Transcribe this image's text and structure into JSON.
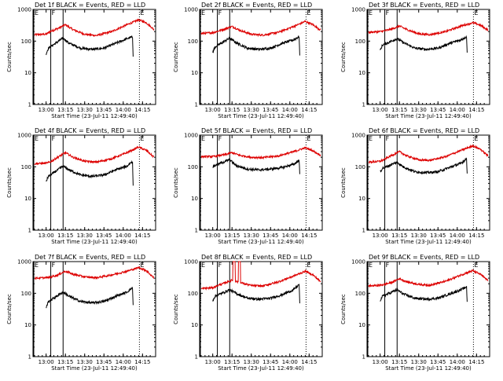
{
  "chart_data": {
    "type": "line",
    "layout": "3x3 grid",
    "xlabel": "Start Time (23-Jul-11 12:49:40)",
    "ylabel": "Counts/sec",
    "yscale": "log",
    "ylim": [
      1,
      1000
    ],
    "y_ticks": [
      "1",
      "10",
      "100",
      "1000"
    ],
    "x_range_minutes": [
      12.83,
      14.42
    ],
    "x_ticks": [
      "13:00",
      "13:15",
      "13:30",
      "13:45",
      "14:00",
      "14:15"
    ],
    "colors": {
      "events": "#000000",
      "lld": "#dd0000",
      "axes": "#000000"
    },
    "legend": "in panel titles",
    "panels": [
      {
        "title": "Det 1f BLACK = Events, RED = LLD",
        "markers": {
          "E_left": 12.84,
          "F": 13.22,
          "E_right": 14.21
        },
        "events_knots": [
          [
            13.0,
            40
          ],
          [
            13.03,
            60
          ],
          [
            13.22,
            125
          ],
          [
            13.3,
            85
          ],
          [
            13.45,
            60
          ],
          [
            13.6,
            55
          ],
          [
            13.75,
            60
          ],
          [
            13.9,
            85
          ],
          [
            14.05,
            120
          ],
          [
            14.12,
            135
          ],
          [
            14.13,
            25
          ]
        ],
        "lld_knots": [
          [
            12.85,
            160
          ],
          [
            13.0,
            165
          ],
          [
            13.05,
            200
          ],
          [
            13.15,
            250
          ],
          [
            13.25,
            330
          ],
          [
            13.35,
            230
          ],
          [
            13.5,
            165
          ],
          [
            13.65,
            150
          ],
          [
            13.85,
            200
          ],
          [
            14.05,
            330
          ],
          [
            14.2,
            470
          ],
          [
            14.3,
            380
          ],
          [
            14.4,
            230
          ]
        ]
      },
      {
        "title": "Det 2f BLACK = Events, RED = LLD",
        "markers": {
          "E_left": 12.84,
          "F": 13.22,
          "E_right": 14.21
        },
        "events_knots": [
          [
            13.0,
            45
          ],
          [
            13.03,
            65
          ],
          [
            13.22,
            125
          ],
          [
            13.3,
            90
          ],
          [
            13.45,
            60
          ],
          [
            13.6,
            55
          ],
          [
            13.75,
            60
          ],
          [
            13.9,
            85
          ],
          [
            14.05,
            110
          ],
          [
            14.12,
            140
          ],
          [
            14.13,
            25
          ]
        ],
        "lld_knots": [
          [
            12.85,
            175
          ],
          [
            13.0,
            185
          ],
          [
            13.05,
            200
          ],
          [
            13.15,
            240
          ],
          [
            13.25,
            290
          ],
          [
            13.35,
            220
          ],
          [
            13.5,
            165
          ],
          [
            13.65,
            155
          ],
          [
            13.85,
            190
          ],
          [
            14.05,
            290
          ],
          [
            14.2,
            420
          ],
          [
            14.3,
            330
          ],
          [
            14.4,
            220
          ]
        ]
      },
      {
        "title": "Det 3f BLACK = Events, RED = LLD",
        "markers": {
          "E_left": 12.84,
          "F": 13.22,
          "E_right": 14.21
        },
        "events_knots": [
          [
            13.0,
            50
          ],
          [
            13.03,
            75
          ],
          [
            13.22,
            120
          ],
          [
            13.3,
            90
          ],
          [
            13.45,
            60
          ],
          [
            13.6,
            55
          ],
          [
            13.75,
            60
          ],
          [
            13.9,
            85
          ],
          [
            14.05,
            110
          ],
          [
            14.12,
            140
          ],
          [
            14.13,
            30
          ]
        ],
        "lld_knots": [
          [
            12.85,
            190
          ],
          [
            13.0,
            200
          ],
          [
            13.05,
            210
          ],
          [
            13.15,
            240
          ],
          [
            13.25,
            300
          ],
          [
            13.35,
            230
          ],
          [
            13.5,
            170
          ],
          [
            13.65,
            160
          ],
          [
            13.85,
            200
          ],
          [
            14.05,
            300
          ],
          [
            14.2,
            380
          ],
          [
            14.3,
            320
          ],
          [
            14.4,
            220
          ]
        ]
      },
      {
        "title": "Det 4f BLACK = Events, RED = LLD",
        "markers": {
          "E_left": 12.84,
          "F": 13.22,
          "E_right": 14.21
        },
        "events_knots": [
          [
            13.0,
            35
          ],
          [
            13.03,
            50
          ],
          [
            13.22,
            105
          ],
          [
            13.3,
            80
          ],
          [
            13.45,
            55
          ],
          [
            13.6,
            50
          ],
          [
            13.75,
            55
          ],
          [
            13.9,
            80
          ],
          [
            14.05,
            105
          ],
          [
            14.12,
            150
          ],
          [
            14.13,
            15
          ]
        ],
        "lld_knots": [
          [
            12.85,
            125
          ],
          [
            13.0,
            130
          ],
          [
            13.05,
            140
          ],
          [
            13.15,
            200
          ],
          [
            13.25,
            280
          ],
          [
            13.35,
            200
          ],
          [
            13.5,
            150
          ],
          [
            13.65,
            140
          ],
          [
            13.85,
            180
          ],
          [
            14.05,
            280
          ],
          [
            14.2,
            420
          ],
          [
            14.3,
            330
          ],
          [
            14.4,
            200
          ]
        ]
      },
      {
        "title": "Det 5f BLACK = Events, RED = LLD",
        "markers": {
          "E_left": 12.84,
          "F": 13.22,
          "E_right": 14.21
        },
        "events_knots": [
          [
            13.0,
            100
          ],
          [
            13.03,
            110
          ],
          [
            13.22,
            170
          ],
          [
            13.3,
            110
          ],
          [
            13.45,
            85
          ],
          [
            13.6,
            80
          ],
          [
            13.75,
            85
          ],
          [
            13.9,
            95
          ],
          [
            14.05,
            120
          ],
          [
            14.12,
            160
          ],
          [
            14.13,
            50
          ]
        ],
        "lld_knots": [
          [
            12.85,
            210
          ],
          [
            13.0,
            210
          ],
          [
            13.05,
            220
          ],
          [
            13.15,
            240
          ],
          [
            13.25,
            280
          ],
          [
            13.35,
            230
          ],
          [
            13.5,
            200
          ],
          [
            13.65,
            195
          ],
          [
            13.85,
            220
          ],
          [
            14.05,
            300
          ],
          [
            14.2,
            400
          ],
          [
            14.3,
            320
          ],
          [
            14.4,
            230
          ]
        ]
      },
      {
        "title": "Det 6f BLACK = Events, RED = LLD",
        "markers": {
          "E_left": 12.84,
          "F": 13.22,
          "E_right": 14.21
        },
        "events_knots": [
          [
            13.0,
            70
          ],
          [
            13.03,
            90
          ],
          [
            13.22,
            140
          ],
          [
            13.3,
            100
          ],
          [
            13.45,
            70
          ],
          [
            13.6,
            65
          ],
          [
            13.75,
            70
          ],
          [
            13.9,
            95
          ],
          [
            14.05,
            130
          ],
          [
            14.12,
            180
          ],
          [
            14.13,
            45
          ]
        ],
        "lld_knots": [
          [
            12.85,
            140
          ],
          [
            13.0,
            150
          ],
          [
            13.05,
            170
          ],
          [
            13.15,
            230
          ],
          [
            13.25,
            300
          ],
          [
            13.35,
            220
          ],
          [
            13.5,
            165
          ],
          [
            13.65,
            160
          ],
          [
            13.85,
            210
          ],
          [
            14.05,
            330
          ],
          [
            14.2,
            460
          ],
          [
            14.3,
            360
          ],
          [
            14.4,
            220
          ]
        ]
      },
      {
        "title": "Det 7f BLACK = Events, RED = LLD",
        "markers": {
          "E_left": 12.84,
          "F": 13.22,
          "E_right": 14.21
        },
        "events_knots": [
          [
            13.0,
            35
          ],
          [
            13.03,
            55
          ],
          [
            13.22,
            110
          ],
          [
            13.3,
            80
          ],
          [
            13.45,
            55
          ],
          [
            13.6,
            50
          ],
          [
            13.75,
            55
          ],
          [
            13.9,
            80
          ],
          [
            14.05,
            110
          ],
          [
            14.12,
            150
          ],
          [
            14.13,
            30
          ]
        ],
        "lld_knots": [
          [
            12.85,
            300
          ],
          [
            13.0,
            310
          ],
          [
            13.05,
            320
          ],
          [
            13.15,
            380
          ],
          [
            13.25,
            500
          ],
          [
            13.35,
            400
          ],
          [
            13.5,
            330
          ],
          [
            13.65,
            310
          ],
          [
            13.85,
            380
          ],
          [
            14.05,
            500
          ],
          [
            14.2,
            650
          ],
          [
            14.3,
            520
          ],
          [
            14.4,
            300
          ]
        ]
      },
      {
        "title": "Det 8f BLACK = Events, RED = LLD",
        "markers": {
          "E_left": 12.84,
          "F": 13.22,
          "E_right": 14.21
        },
        "events_knots": [
          [
            13.0,
            60
          ],
          [
            13.03,
            80
          ],
          [
            13.22,
            130
          ],
          [
            13.3,
            100
          ],
          [
            13.45,
            70
          ],
          [
            13.6,
            65
          ],
          [
            13.75,
            70
          ],
          [
            13.9,
            90
          ],
          [
            14.05,
            130
          ],
          [
            14.12,
            190
          ],
          [
            14.13,
            35
          ]
        ],
        "lld_knots": [
          [
            12.85,
            140
          ],
          [
            13.0,
            150
          ],
          [
            13.05,
            170
          ],
          [
            13.15,
            210
          ],
          [
            13.25,
            260
          ],
          [
            13.35,
            220
          ],
          [
            13.5,
            175
          ],
          [
            13.65,
            170
          ],
          [
            13.85,
            230
          ],
          [
            14.05,
            350
          ],
          [
            14.2,
            500
          ],
          [
            14.3,
            380
          ],
          [
            14.4,
            230
          ]
        ],
        "lld_spikes": [
          [
            13.26,
            13.29
          ],
          [
            13.33,
            13.36
          ]
        ]
      },
      {
        "title": "Det 9f BLACK = Events, RED = LLD",
        "markers": {
          "E_left": 12.84,
          "F": 13.22,
          "E_right": 14.21
        },
        "events_knots": [
          [
            13.0,
            60
          ],
          [
            13.03,
            80
          ],
          [
            13.22,
            130
          ],
          [
            13.3,
            95
          ],
          [
            13.45,
            70
          ],
          [
            13.6,
            65
          ],
          [
            13.75,
            70
          ],
          [
            13.9,
            95
          ],
          [
            14.05,
            130
          ],
          [
            14.12,
            160
          ],
          [
            14.13,
            40
          ]
        ],
        "lld_knots": [
          [
            12.85,
            170
          ],
          [
            13.0,
            180
          ],
          [
            13.05,
            190
          ],
          [
            13.15,
            220
          ],
          [
            13.25,
            290
          ],
          [
            13.35,
            230
          ],
          [
            13.5,
            190
          ],
          [
            13.65,
            180
          ],
          [
            13.85,
            240
          ],
          [
            14.05,
            380
          ],
          [
            14.2,
            520
          ],
          [
            14.3,
            400
          ],
          [
            14.4,
            250
          ]
        ]
      }
    ]
  }
}
